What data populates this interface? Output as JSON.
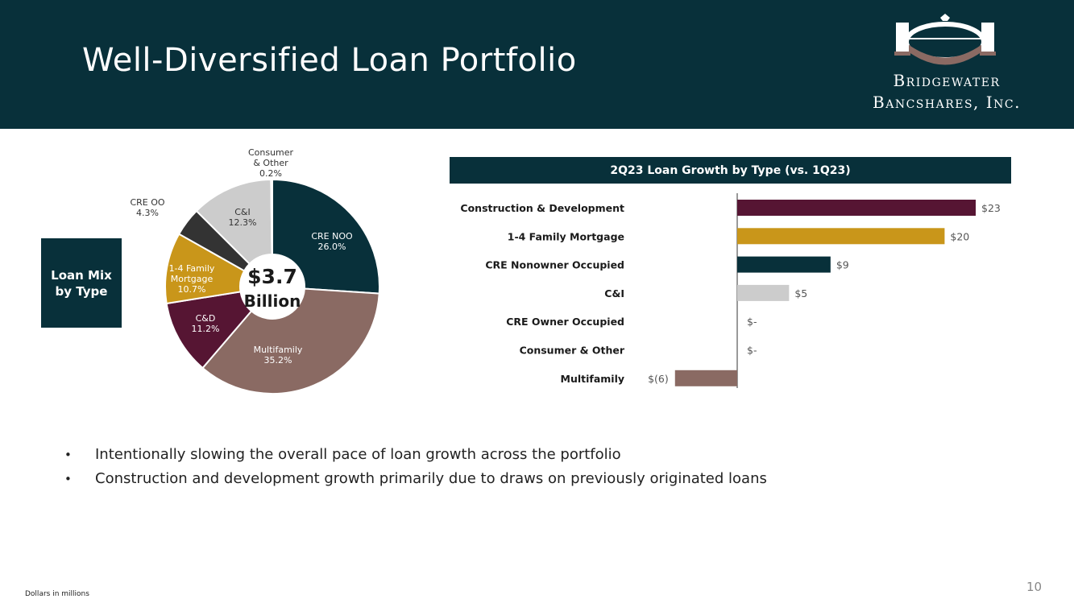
{
  "header": {
    "title": "Well-Diversified Loan Portfolio",
    "brand_color": "#08303a"
  },
  "logo": {
    "line1": "Bridgewater",
    "line2": "Bancshares, Inc."
  },
  "loan_mix_box": {
    "label": "Loan Mix\nby Type"
  },
  "chart_data": [
    {
      "type": "pie",
      "donut": true,
      "center_label": {
        "amount": "$3.7",
        "unit": "Billion"
      },
      "slices": [
        {
          "name": "CRE NOO",
          "value": 26.0,
          "label": "26.0%",
          "color": "#08303a"
        },
        {
          "name": "Multifamily",
          "value": 35.2,
          "label": "35.2%",
          "color": "#8a6a63"
        },
        {
          "name": "C&D",
          "value": 11.2,
          "label": "11.2%",
          "color": "#561533"
        },
        {
          "name": "1-4 Family Mortgage",
          "value": 10.7,
          "label": "10.7%",
          "color": "#c9961a"
        },
        {
          "name": "CRE OO",
          "value": 4.3,
          "label": "4.3%",
          "color": "#333333"
        },
        {
          "name": "C&I",
          "value": 12.3,
          "label": "12.3%",
          "color": "#cccccc"
        },
        {
          "name": "Consumer & Other",
          "value": 0.2,
          "label": "0.2%",
          "color": "#1a1a1a"
        }
      ]
    },
    {
      "type": "bar",
      "orientation": "horizontal",
      "title": "2Q23 Loan Growth by Type (vs. 1Q23)",
      "categories": [
        "Construction & Development",
        "1-4 Family Mortgage",
        "CRE Nonowner Occupied",
        "C&I",
        "CRE Owner Occupied",
        "Consumer & Other",
        "Multifamily"
      ],
      "values": [
        23,
        20,
        9,
        5,
        0,
        0,
        -6
      ],
      "value_labels": [
        "$23",
        "$20",
        "$9",
        "$5",
        "$-",
        "$-",
        "$(6)"
      ],
      "colors": [
        "#561533",
        "#c9961a",
        "#08303a",
        "#cccccc",
        "#cccccc",
        "#cccccc",
        "#8a6a63"
      ],
      "xlim": [
        -10,
        25
      ]
    }
  ],
  "bullets": [
    "Intentionally slowing the overall pace of loan growth across the portfolio",
    "Construction and development growth primarily due to draws on previously originated loans"
  ],
  "footnote": "Dollars in millions",
  "page_number": "10"
}
